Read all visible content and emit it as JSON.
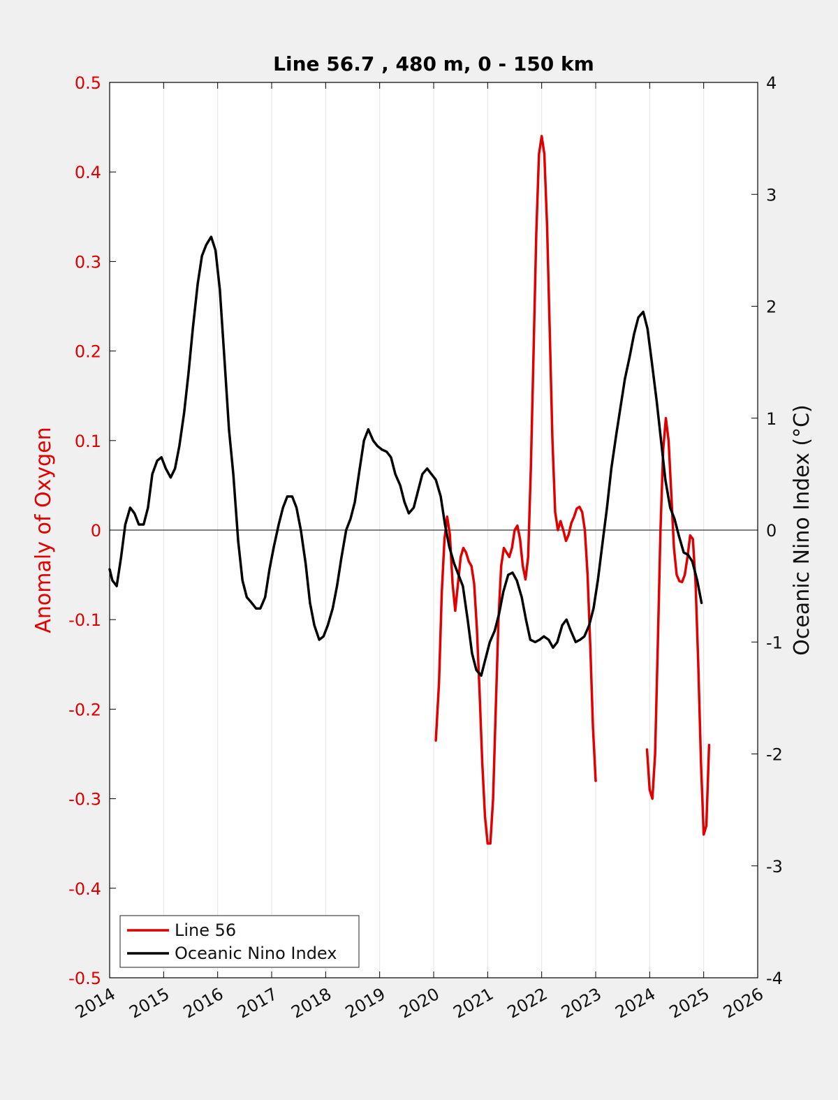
{
  "chart_data": {
    "type": "line",
    "title": "Line 56.7 , 480 m, 0 - 150 km",
    "xlim": [
      2014,
      2026
    ],
    "x_ticks": [
      "2014",
      "2015",
      "2016",
      "2017",
      "2018",
      "2019",
      "2020",
      "2021",
      "2022",
      "2023",
      "2024",
      "2025",
      "2026"
    ],
    "ylabel_left": "Anomaly of Oxygen",
    "ylim_left": [
      -0.5,
      0.5
    ],
    "y_ticks_left": [
      "0.5",
      "0.4",
      "0.3",
      "0.2",
      "0.1",
      "0",
      "-0.1",
      "-0.2",
      "-0.3",
      "-0.4",
      "-0.5"
    ],
    "ylabel_right": "Oceanic Nino Index (°C)",
    "ylim_right": [
      -4,
      4
    ],
    "y_ticks_right": [
      "4",
      "3",
      "2",
      "1",
      "0",
      "-1",
      "-2",
      "-3",
      "-4"
    ],
    "grid": "vertical",
    "legend_position": "bottom-left",
    "series": [
      {
        "name": "Line 56",
        "axis": "left",
        "color": "#e00000",
        "segments": [
          [
            [
              2020.04,
              -0.235
            ],
            [
              2020.1,
              -0.17
            ],
            [
              2020.15,
              -0.07
            ],
            [
              2020.2,
              -0.01
            ],
            [
              2020.25,
              0.015
            ],
            [
              2020.3,
              -0.005
            ],
            [
              2020.35,
              -0.06
            ],
            [
              2020.4,
              -0.09
            ],
            [
              2020.45,
              -0.06
            ],
            [
              2020.5,
              -0.03
            ],
            [
              2020.55,
              -0.02
            ],
            [
              2020.6,
              -0.025
            ],
            [
              2020.65,
              -0.035
            ],
            [
              2020.7,
              -0.04
            ],
            [
              2020.75,
              -0.06
            ],
            [
              2020.8,
              -0.11
            ],
            [
              2020.85,
              -0.18
            ],
            [
              2020.9,
              -0.26
            ],
            [
              2020.95,
              -0.32
            ],
            [
              2021.0,
              -0.35
            ],
            [
              2021.05,
              -0.35
            ],
            [
              2021.1,
              -0.3
            ],
            [
              2021.15,
              -0.2
            ],
            [
              2021.2,
              -0.1
            ],
            [
              2021.25,
              -0.04
            ],
            [
              2021.3,
              -0.02
            ],
            [
              2021.35,
              -0.025
            ],
            [
              2021.4,
              -0.03
            ],
            [
              2021.45,
              -0.02
            ],
            [
              2021.5,
              0.0
            ],
            [
              2021.55,
              0.005
            ],
            [
              2021.6,
              -0.01
            ],
            [
              2021.65,
              -0.04
            ],
            [
              2021.7,
              -0.055
            ],
            [
              2021.75,
              -0.03
            ],
            [
              2021.8,
              0.07
            ],
            [
              2021.85,
              0.2
            ],
            [
              2021.9,
              0.33
            ],
            [
              2021.95,
              0.42
            ],
            [
              2022.0,
              0.44
            ],
            [
              2022.05,
              0.42
            ],
            [
              2022.1,
              0.34
            ],
            [
              2022.15,
              0.22
            ],
            [
              2022.2,
              0.1
            ],
            [
              2022.25,
              0.02
            ],
            [
              2022.3,
              0.0
            ],
            [
              2022.35,
              0.01
            ],
            [
              2022.4,
              0.0
            ],
            [
              2022.45,
              -0.012
            ],
            [
              2022.5,
              -0.005
            ],
            [
              2022.55,
              0.008
            ],
            [
              2022.6,
              0.015
            ],
            [
              2022.65,
              0.024
            ],
            [
              2022.7,
              0.026
            ],
            [
              2022.75,
              0.02
            ],
            [
              2022.8,
              0.0
            ],
            [
              2022.85,
              -0.05
            ],
            [
              2022.9,
              -0.13
            ],
            [
              2022.95,
              -0.22
            ],
            [
              2023.0,
              -0.28
            ]
          ],
          [
            [
              2023.95,
              -0.245
            ],
            [
              2024.0,
              -0.29
            ],
            [
              2024.05,
              -0.3
            ],
            [
              2024.1,
              -0.25
            ],
            [
              2024.15,
              -0.13
            ],
            [
              2024.2,
              0.0
            ],
            [
              2024.25,
              0.09
            ],
            [
              2024.3,
              0.125
            ],
            [
              2024.35,
              0.1
            ],
            [
              2024.4,
              0.04
            ],
            [
              2024.45,
              -0.02
            ],
            [
              2024.5,
              -0.05
            ],
            [
              2024.55,
              -0.057
            ],
            [
              2024.6,
              -0.058
            ],
            [
              2024.65,
              -0.05
            ],
            [
              2024.7,
              -0.03
            ],
            [
              2024.75,
              -0.006
            ],
            [
              2024.8,
              -0.01
            ],
            [
              2024.85,
              -0.06
            ],
            [
              2024.9,
              -0.15
            ],
            [
              2024.95,
              -0.26
            ],
            [
              2025.0,
              -0.34
            ],
            [
              2025.05,
              -0.33
            ],
            [
              2025.1,
              -0.24
            ]
          ]
        ]
      },
      {
        "name": "Oceanic Nino Index",
        "axis": "right",
        "color": "#000000",
        "segments": [
          [
            [
              2014.0,
              -0.35
            ],
            [
              2014.05,
              -0.45
            ],
            [
              2014.13,
              -0.5
            ],
            [
              2014.21,
              -0.25
            ],
            [
              2014.29,
              0.05
            ],
            [
              2014.38,
              0.2
            ],
            [
              2014.46,
              0.15
            ],
            [
              2014.54,
              0.05
            ],
            [
              2014.63,
              0.05
            ],
            [
              2014.71,
              0.2
            ],
            [
              2014.79,
              0.5
            ],
            [
              2014.88,
              0.62
            ],
            [
              2014.96,
              0.65
            ],
            [
              2015.04,
              0.55
            ],
            [
              2015.13,
              0.47
            ],
            [
              2015.21,
              0.55
            ],
            [
              2015.29,
              0.75
            ],
            [
              2015.38,
              1.05
            ],
            [
              2015.46,
              1.4
            ],
            [
              2015.54,
              1.8
            ],
            [
              2015.63,
              2.2
            ],
            [
              2015.71,
              2.45
            ],
            [
              2015.79,
              2.55
            ],
            [
              2015.88,
              2.62
            ],
            [
              2015.96,
              2.5
            ],
            [
              2016.04,
              2.15
            ],
            [
              2016.13,
              1.5
            ],
            [
              2016.21,
              0.9
            ],
            [
              2016.29,
              0.5
            ],
            [
              2016.38,
              -0.1
            ],
            [
              2016.46,
              -0.45
            ],
            [
              2016.54,
              -0.6
            ],
            [
              2016.63,
              -0.65
            ],
            [
              2016.71,
              -0.7
            ],
            [
              2016.79,
              -0.7
            ],
            [
              2016.88,
              -0.6
            ],
            [
              2016.96,
              -0.35
            ],
            [
              2017.04,
              -0.15
            ],
            [
              2017.13,
              0.05
            ],
            [
              2017.21,
              0.2
            ],
            [
              2017.29,
              0.3
            ],
            [
              2017.38,
              0.3
            ],
            [
              2017.46,
              0.2
            ],
            [
              2017.54,
              0.0
            ],
            [
              2017.63,
              -0.3
            ],
            [
              2017.71,
              -0.65
            ],
            [
              2017.79,
              -0.85
            ],
            [
              2017.88,
              -0.98
            ],
            [
              2017.96,
              -0.95
            ],
            [
              2018.04,
              -0.85
            ],
            [
              2018.13,
              -0.7
            ],
            [
              2018.21,
              -0.5
            ],
            [
              2018.29,
              -0.25
            ],
            [
              2018.38,
              0.0
            ],
            [
              2018.46,
              0.1
            ],
            [
              2018.54,
              0.25
            ],
            [
              2018.63,
              0.55
            ],
            [
              2018.71,
              0.8
            ],
            [
              2018.79,
              0.9
            ],
            [
              2018.88,
              0.8
            ],
            [
              2018.96,
              0.75
            ],
            [
              2019.04,
              0.72
            ],
            [
              2019.13,
              0.7
            ],
            [
              2019.21,
              0.65
            ],
            [
              2019.29,
              0.5
            ],
            [
              2019.38,
              0.4
            ],
            [
              2019.46,
              0.25
            ],
            [
              2019.54,
              0.15
            ],
            [
              2019.63,
              0.2
            ],
            [
              2019.71,
              0.35
            ],
            [
              2019.79,
              0.5
            ],
            [
              2019.88,
              0.55
            ],
            [
              2019.96,
              0.5
            ],
            [
              2020.04,
              0.45
            ],
            [
              2020.13,
              0.3
            ],
            [
              2020.21,
              0.05
            ],
            [
              2020.29,
              -0.15
            ],
            [
              2020.38,
              -0.3
            ],
            [
              2020.46,
              -0.4
            ],
            [
              2020.54,
              -0.5
            ],
            [
              2020.63,
              -0.8
            ],
            [
              2020.71,
              -1.1
            ],
            [
              2020.79,
              -1.25
            ],
            [
              2020.88,
              -1.3
            ],
            [
              2020.96,
              -1.15
            ],
            [
              2021.04,
              -1.0
            ],
            [
              2021.13,
              -0.9
            ],
            [
              2021.21,
              -0.75
            ],
            [
              2021.29,
              -0.55
            ],
            [
              2021.38,
              -0.4
            ],
            [
              2021.46,
              -0.38
            ],
            [
              2021.54,
              -0.45
            ],
            [
              2021.63,
              -0.6
            ],
            [
              2021.71,
              -0.8
            ],
            [
              2021.79,
              -0.98
            ],
            [
              2021.88,
              -1.0
            ],
            [
              2021.96,
              -0.98
            ],
            [
              2022.04,
              -0.95
            ],
            [
              2022.13,
              -0.98
            ],
            [
              2022.21,
              -1.05
            ],
            [
              2022.29,
              -1.0
            ],
            [
              2022.38,
              -0.85
            ],
            [
              2022.46,
              -0.8
            ],
            [
              2022.54,
              -0.9
            ],
            [
              2022.63,
              -1.0
            ],
            [
              2022.71,
              -0.98
            ],
            [
              2022.79,
              -0.95
            ],
            [
              2022.88,
              -0.85
            ],
            [
              2022.96,
              -0.7
            ],
            [
              2023.04,
              -0.45
            ],
            [
              2023.13,
              -0.1
            ],
            [
              2023.21,
              0.2
            ],
            [
              2023.29,
              0.55
            ],
            [
              2023.38,
              0.85
            ],
            [
              2023.46,
              1.1
            ],
            [
              2023.54,
              1.35
            ],
            [
              2023.63,
              1.55
            ],
            [
              2023.71,
              1.75
            ],
            [
              2023.79,
              1.9
            ],
            [
              2023.88,
              1.95
            ],
            [
              2023.96,
              1.8
            ],
            [
              2024.04,
              1.5
            ],
            [
              2024.13,
              1.15
            ],
            [
              2024.21,
              0.8
            ],
            [
              2024.29,
              0.45
            ],
            [
              2024.38,
              0.2
            ],
            [
              2024.46,
              0.1
            ],
            [
              2024.54,
              -0.05
            ],
            [
              2024.63,
              -0.2
            ],
            [
              2024.71,
              -0.22
            ],
            [
              2024.79,
              -0.28
            ],
            [
              2024.88,
              -0.45
            ],
            [
              2024.96,
              -0.65
            ]
          ]
        ]
      }
    ]
  }
}
